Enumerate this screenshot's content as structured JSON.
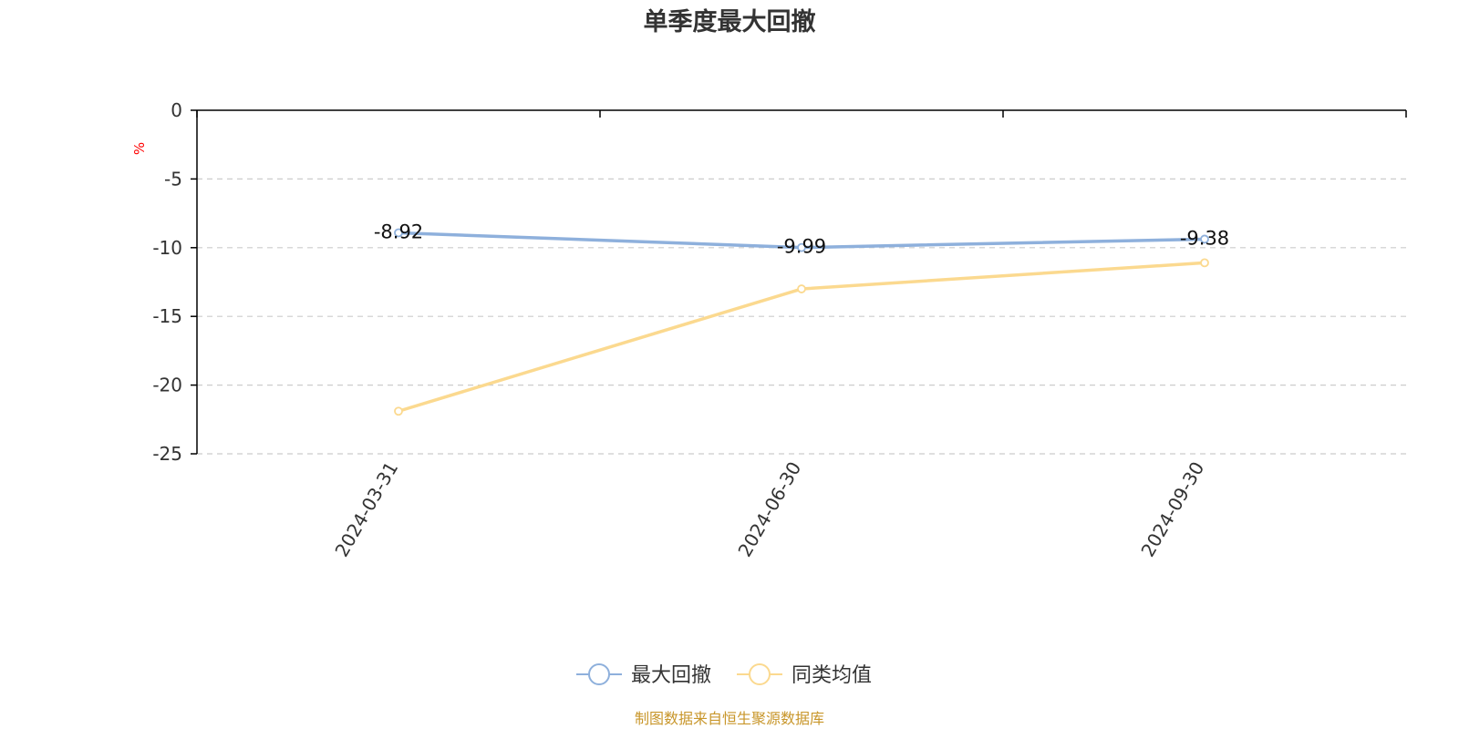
{
  "chart_data": {
    "type": "line",
    "title": "单季度最大回撤",
    "ylabel": "%",
    "xlabel": "",
    "categories": [
      "2024-03-31",
      "2024-06-30",
      "2024-09-30"
    ],
    "ylim": [
      -25,
      0
    ],
    "yticks": [
      0,
      -5,
      -10,
      -15,
      -20,
      -25
    ],
    "grid": true,
    "legend_position": "bottom-center",
    "series": [
      {
        "name": "最大回撤",
        "values": [
          -8.92,
          -9.99,
          -9.38
        ],
        "labels": [
          "-8.92",
          "-9.99",
          "-9.38"
        ],
        "color": "#8eb0dc"
      },
      {
        "name": "同类均值",
        "values": [
          -21.9,
          -13.0,
          -11.1
        ],
        "color": "#fbd98f"
      }
    ],
    "source": "制图数据来自恒生聚源数据库",
    "colors": {
      "axis": "#000000",
      "grid": "#cccccc",
      "text": "#333333",
      "unit": "#ff0000",
      "source": "#c8962a"
    }
  }
}
